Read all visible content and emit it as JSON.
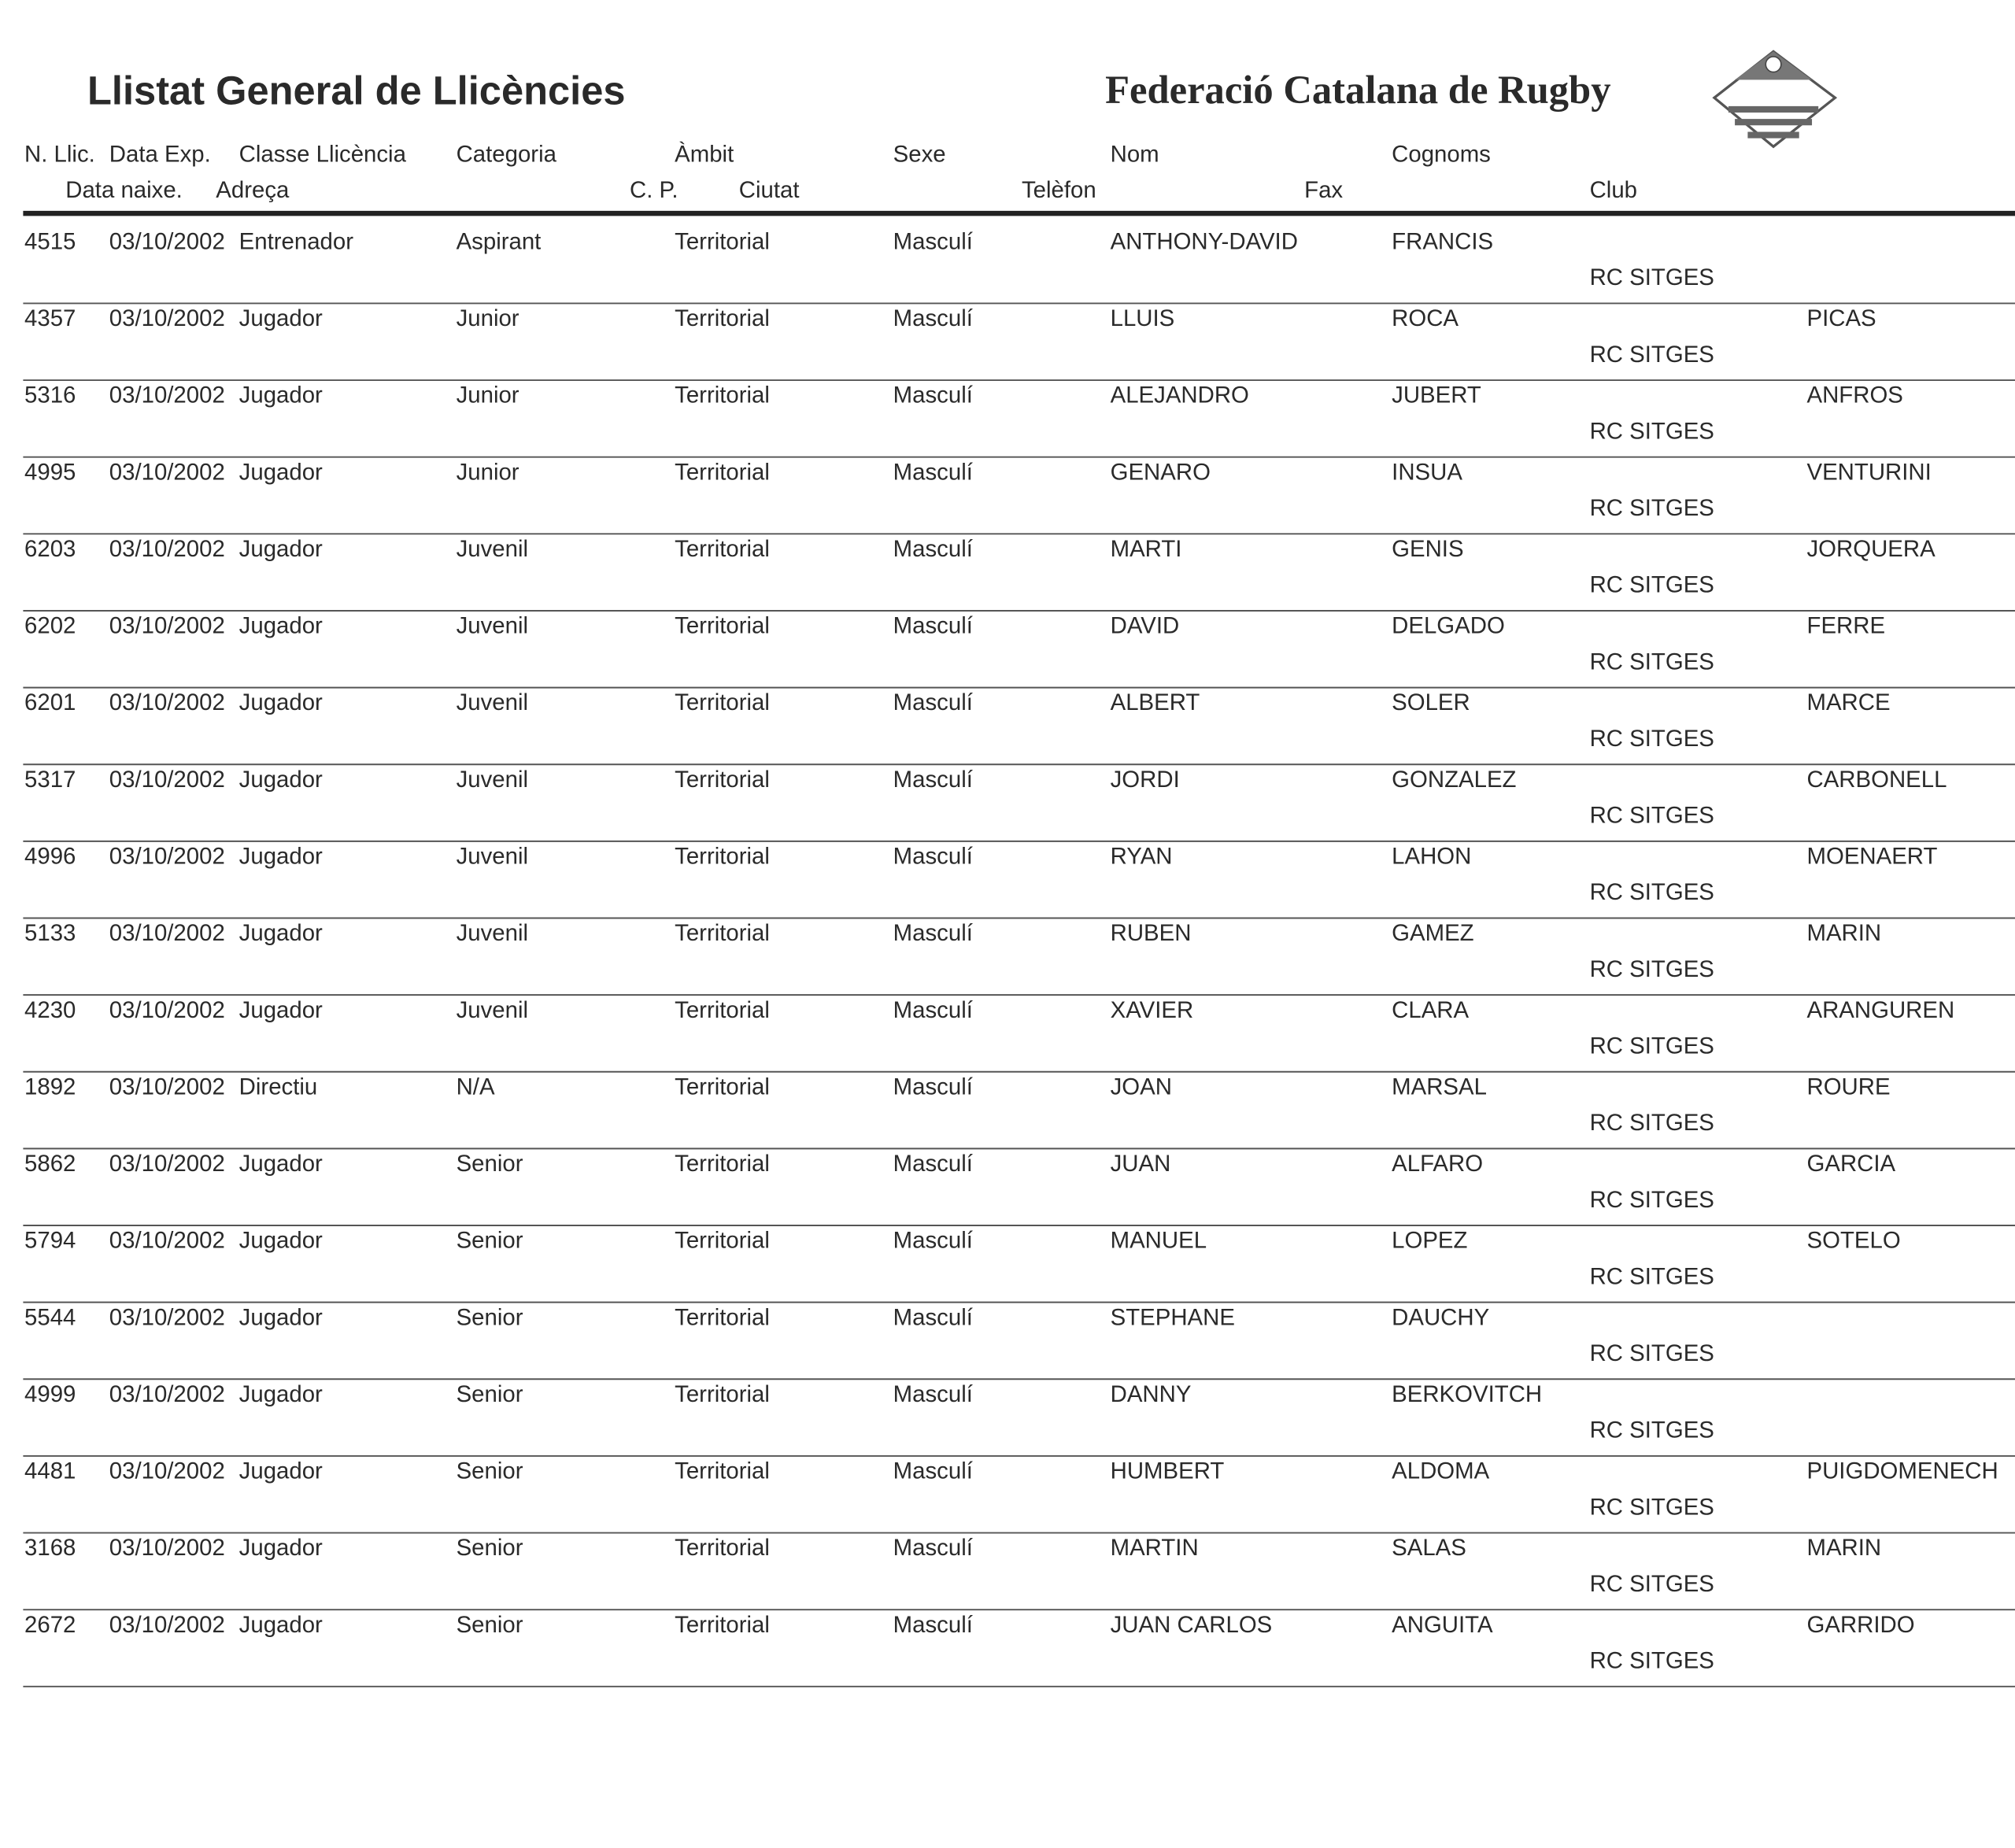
{
  "header": {
    "title": "Llistat General de Llicències",
    "federation": "Federació Catalana de Rugby"
  },
  "columns": {
    "line1": [
      "N. Llic.",
      "Data Exp.",
      "Classe Llicència",
      "Categoria",
      "Àmbit",
      "Sexe",
      "Nom",
      "Cognoms"
    ],
    "line2": [
      "Data naixe.",
      "Adreça",
      "C. P.",
      "Ciutat",
      "Telèfon",
      "Fax",
      "Club"
    ]
  },
  "rows": [
    {
      "id": "4515",
      "date": "03/10/2002",
      "class": "Entrenador",
      "category": "Aspirant",
      "scope": "Territorial",
      "sex": "Masculí",
      "name": "ANTHONY-DAVID",
      "surname1": "FRANCIS",
      "club": "RC SITGES"
    },
    {
      "id": "4357",
      "date": "03/10/2002",
      "class": "Jugador",
      "category": "Junior",
      "scope": "Territorial",
      "sex": "Masculí",
      "name": "LLUIS",
      "surname1": "ROCA",
      "surname2": "PICAS",
      "club": "RC SITGES"
    },
    {
      "id": "5316",
      "date": "03/10/2002",
      "class": "Jugador",
      "category": "Junior",
      "scope": "Territorial",
      "sex": "Masculí",
      "name": "ALEJANDRO",
      "surname1": "JUBERT",
      "surname2": "ANFROS",
      "club": "RC SITGES"
    },
    {
      "id": "4995",
      "date": "03/10/2002",
      "class": "Jugador",
      "category": "Junior",
      "scope": "Territorial",
      "sex": "Masculí",
      "name": "GENARO",
      "surname1": "INSUA",
      "surname2": "VENTURINI",
      "club": "RC SITGES"
    },
    {
      "id": "6203",
      "date": "03/10/2002",
      "class": "Jugador",
      "category": "Juvenil",
      "scope": "Territorial",
      "sex": "Masculí",
      "name": "MARTI",
      "surname1": "GENIS",
      "surname2": "JORQUERA",
      "club": "RC SITGES"
    },
    {
      "id": "6202",
      "date": "03/10/2002",
      "class": "Jugador",
      "category": "Juvenil",
      "scope": "Territorial",
      "sex": "Masculí",
      "name": "DAVID",
      "surname1": "DELGADO",
      "surname2": "FERRE",
      "club": "RC SITGES"
    },
    {
      "id": "6201",
      "date": "03/10/2002",
      "class": "Jugador",
      "category": "Juvenil",
      "scope": "Territorial",
      "sex": "Masculí",
      "name": "ALBERT",
      "surname1": "SOLER",
      "surname2": "MARCE",
      "club": "RC SITGES"
    },
    {
      "id": "5317",
      "date": "03/10/2002",
      "class": "Jugador",
      "category": "Juvenil",
      "scope": "Territorial",
      "sex": "Masculí",
      "name": "JORDI",
      "surname1": "GONZALEZ",
      "surname2": "CARBONELL",
      "club": "RC SITGES"
    },
    {
      "id": "4996",
      "date": "03/10/2002",
      "class": "Jugador",
      "category": "Juvenil",
      "scope": "Territorial",
      "sex": "Masculí",
      "name": "RYAN",
      "surname1": "LAHON",
      "surname2": "MOENAERT",
      "club": "RC SITGES"
    },
    {
      "id": "5133",
      "date": "03/10/2002",
      "class": "Jugador",
      "category": "Juvenil",
      "scope": "Territorial",
      "sex": "Masculí",
      "name": "RUBEN",
      "surname1": "GAMEZ",
      "surname2": "MARIN",
      "club": "RC SITGES"
    },
    {
      "id": "4230",
      "date": "03/10/2002",
      "class": "Jugador",
      "category": "Juvenil",
      "scope": "Territorial",
      "sex": "Masculí",
      "name": "XAVIER",
      "surname1": "CLARA",
      "surname2": "ARANGUREN",
      "club": "RC SITGES"
    },
    {
      "id": "1892",
      "date": "03/10/2002",
      "class": "Directiu",
      "category": "N/A",
      "scope": "Territorial",
      "sex": "Masculí",
      "name": "JOAN",
      "surname1": "MARSAL",
      "surname2": "ROURE",
      "club": "RC SITGES"
    },
    {
      "id": "5862",
      "date": "03/10/2002",
      "class": "Jugador",
      "category": "Senior",
      "scope": "Territorial",
      "sex": "Masculí",
      "name": "JUAN",
      "surname1": "ALFARO",
      "surname2": "GARCIA",
      "club": "RC SITGES"
    },
    {
      "id": "5794",
      "date": "03/10/2002",
      "class": "Jugador",
      "category": "Senior",
      "scope": "Territorial",
      "sex": "Masculí",
      "name": "MANUEL",
      "surname1": "LOPEZ",
      "surname2": "SOTELO",
      "club": "RC SITGES"
    },
    {
      "id": "5544",
      "date": "03/10/2002",
      "class": "Jugador",
      "category": "Senior",
      "scope": "Territorial",
      "sex": "Masculí",
      "name": "STEPHANE",
      "surname1": "DAUCHY",
      "club": "RC SITGES"
    },
    {
      "id": "4999",
      "date": "03/10/2002",
      "class": "Jugador",
      "category": "Senior",
      "scope": "Territorial",
      "sex": "Masculí",
      "name": "DANNY",
      "surname1": "BERKOVITCH",
      "club": "RC SITGES"
    },
    {
      "id": "4481",
      "date": "03/10/2002",
      "class": "Jugador",
      "category": "Senior",
      "scope": "Territorial",
      "sex": "Masculí",
      "name": "HUMBERT",
      "surname1": "ALDOMA",
      "surname2": "PUIGDOMENECH",
      "club": "RC SITGES"
    },
    {
      "id": "3168",
      "date": "03/10/2002",
      "class": "Jugador",
      "category": "Senior",
      "scope": "Territorial",
      "sex": "Masculí",
      "name": "MARTIN",
      "surname1": "SALAS",
      "surname2": "MARIN",
      "club": "RC SITGES"
    },
    {
      "id": "2672",
      "date": "03/10/2002",
      "class": "Jugador",
      "category": "Senior",
      "scope": "Territorial",
      "sex": "Masculí",
      "name": "JUAN CARLOS",
      "surname1": "ANGUITA",
      "surname2": "GARRIDO",
      "club": "RC SITGES"
    }
  ]
}
